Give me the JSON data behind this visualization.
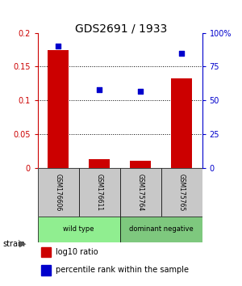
{
  "title": "GDS2691 / 1933",
  "samples": [
    "GSM176606",
    "GSM176611",
    "GSM175764",
    "GSM175765"
  ],
  "log10_ratio": [
    0.175,
    0.013,
    0.01,
    0.133
  ],
  "percentile_rank": [
    90,
    58,
    57,
    85
  ],
  "ylim_left": [
    0,
    0.2
  ],
  "ylim_right": [
    0,
    100
  ],
  "yticks_left": [
    0,
    0.05,
    0.1,
    0.15,
    0.2
  ],
  "yticks_right": [
    0,
    25,
    50,
    75,
    100
  ],
  "ytick_labels_left": [
    "0",
    "0.05",
    "0.1",
    "0.15",
    "0.2"
  ],
  "ytick_labels_right": [
    "0",
    "25",
    "50",
    "75",
    "100%"
  ],
  "groups": [
    {
      "label": "wild type",
      "samples": [
        0,
        1
      ],
      "color": "#90EE90"
    },
    {
      "label": "dominant negative",
      "samples": [
        2,
        3
      ],
      "color": "#7EC87E"
    }
  ],
  "bar_color": "#CC0000",
  "dot_color": "#0000CC",
  "bar_width": 0.5,
  "legend_bar_label": "log10 ratio",
  "legend_dot_label": "percentile rank within the sample",
  "group_label": "strain",
  "sample_bg_color": "#C8C8C8",
  "title_fontsize": 10,
  "tick_fontsize": 7,
  "label_fontsize": 7,
  "legend_fontsize": 7,
  "sample_fontsize": 5.5,
  "group_fontsize": 6
}
